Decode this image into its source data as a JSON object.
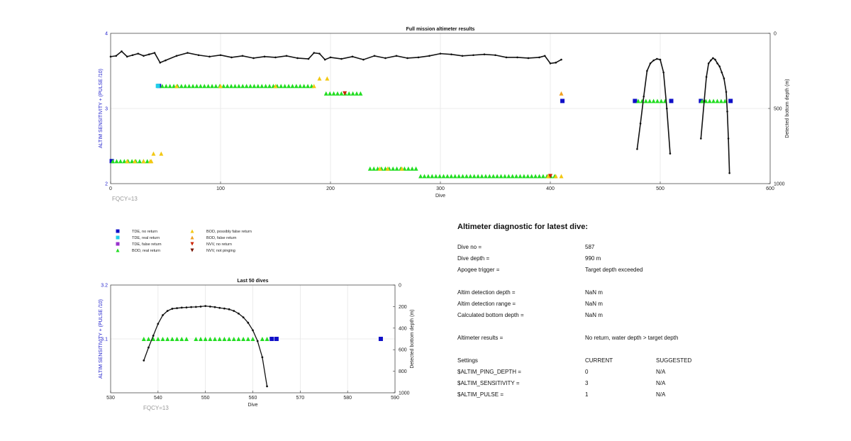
{
  "chart_data": [
    {
      "type": "scatter",
      "title": "Full mission altimeter results",
      "xlabel": "Dive",
      "ylabel": "ALTIM SENSITIVITY + (PULSE /10)",
      "y2label": "Detected bottom depth (m)",
      "xlim": [
        0,
        600
      ],
      "ylim": [
        2,
        4
      ],
      "y2lim": [
        0,
        1000
      ],
      "y2_reversed": true,
      "grid": true,
      "xticks": [
        "0",
        "100",
        "200",
        "300",
        "400",
        "500",
        "600"
      ],
      "yticks": [
        "2",
        "3",
        "4"
      ],
      "y2ticks": [
        "0",
        "500",
        "1000"
      ],
      "note": "FQCY=13",
      "series": [
        {
          "name": "TDE, no return",
          "marker": "square",
          "color": "#1010c8",
          "points": [
            [
              1,
              2.3
            ],
            [
              44,
              3.3
            ],
            [
              411,
              3.1
            ],
            [
              477,
              3.1
            ],
            [
              510,
              3.1
            ],
            [
              537,
              3.1
            ],
            [
              564,
              3.1
            ]
          ]
        },
        {
          "name": "TDE, real return",
          "marker": "square",
          "color": "#20d0e8",
          "points": [
            [
              43,
              3.3
            ]
          ]
        },
        {
          "name": "BOD, real return",
          "marker": "triangle",
          "color": "#22dd22",
          "segments": [
            [
              2,
              36,
              2.3
            ],
            [
              47,
              185,
              3.3
            ],
            [
              196,
              230,
              3.2
            ],
            [
              236,
              280,
              2.2
            ],
            [
              282,
              405,
              2.1
            ],
            [
              480,
              507,
              3.1
            ],
            [
              538,
              562,
              3.1
            ]
          ]
        },
        {
          "name": "BOD, possibly false return",
          "marker": "triangle",
          "color": "#f2c813",
          "points": [
            [
              15,
              2.3
            ],
            [
              22,
              2.3
            ],
            [
              30,
              2.3
            ],
            [
              36,
              2.3
            ],
            [
              37,
              2.3
            ],
            [
              39,
              2.4
            ],
            [
              46,
              2.4
            ],
            [
              60,
              3.3
            ],
            [
              100,
              3.3
            ],
            [
              150,
              3.3
            ],
            [
              185,
              3.3
            ],
            [
              190,
              3.4
            ],
            [
              197,
              3.4
            ],
            [
              245,
              2.2
            ],
            [
              252,
              2.2
            ],
            [
              265,
              2.2
            ],
            [
              398,
              2.1
            ],
            [
              405,
              2.1
            ],
            [
              410,
              2.1
            ]
          ]
        },
        {
          "name": "BOD, false return",
          "marker": "triangle",
          "color": "#f0a020",
          "points": [
            [
              410,
              3.2
            ]
          ]
        },
        {
          "name": "NVV, no return",
          "marker": "triangle-down",
          "color": "#cc2200",
          "points": [
            [
              213,
              3.2
            ],
            [
              400,
              2.1
            ]
          ]
        },
        {
          "name": "Detected bottom depth",
          "axis": "right",
          "marker": "dot-line",
          "color": "#111111",
          "x": [
            0,
            5,
            10,
            15,
            20,
            25,
            30,
            35,
            40,
            45,
            50,
            60,
            70,
            80,
            90,
            100,
            110,
            120,
            130,
            140,
            150,
            160,
            170,
            180,
            185,
            190,
            195,
            200,
            210,
            220,
            230,
            240,
            250,
            260,
            270,
            280,
            290,
            300,
            310,
            320,
            330,
            340,
            350,
            360,
            370,
            380,
            390,
            395,
            400,
            405,
            410
          ],
          "y": [
            155,
            150,
            120,
            155,
            145,
            135,
            150,
            140,
            130,
            195,
            180,
            150,
            130,
            145,
            155,
            145,
            160,
            150,
            165,
            155,
            160,
            150,
            165,
            170,
            130,
            135,
            175,
            160,
            170,
            155,
            175,
            150,
            165,
            150,
            165,
            160,
            150,
            135,
            140,
            150,
            145,
            140,
            145,
            160,
            160,
            165,
            160,
            150,
            200,
            195,
            175
          ]
        },
        {
          "name": "Detected bottom depth (dives 477-508)",
          "axis": "right",
          "marker": "dot-line",
          "color": "#111111",
          "x": [
            479,
            482,
            485,
            488,
            491,
            494,
            497,
            500,
            503,
            506,
            509
          ],
          "y": [
            770,
            600,
            420,
            250,
            200,
            180,
            170,
            175,
            260,
            500,
            800
          ]
        },
        {
          "name": "Detected bottom depth (dives 536-564)",
          "axis": "right",
          "marker": "dot-line",
          "color": "#111111",
          "x": [
            537,
            540,
            542,
            544,
            546,
            548,
            550,
            552,
            554,
            556,
            558,
            560,
            561,
            562,
            563
          ],
          "y": [
            700,
            450,
            290,
            200,
            180,
            165,
            175,
            200,
            220,
            260,
            300,
            390,
            520,
            700,
            930
          ]
        }
      ]
    },
    {
      "type": "scatter",
      "title": "Last 50 dives",
      "xlabel": "Dive",
      "ylabel": "ALTIM SENSITIVITY + (PULSE /10)",
      "y2label": "Detected bottom depth (m)",
      "xlim": [
        530,
        590
      ],
      "ylim": [
        3.0,
        3.2
      ],
      "y2lim": [
        0,
        1000
      ],
      "y2_reversed": true,
      "grid": true,
      "xticks": [
        "530",
        "540",
        "550",
        "560",
        "570",
        "580",
        "590"
      ],
      "yticks": [
        "3.1",
        "3.2"
      ],
      "y2ticks": [
        "0",
        "200",
        "400",
        "600",
        "800",
        "1000"
      ],
      "note": "FQCY=13",
      "series": [
        {
          "name": "BOD, real return",
          "marker": "triangle",
          "color": "#22dd22",
          "points": [
            [
              537,
              3.1
            ],
            [
              538,
              3.1
            ],
            [
              539,
              3.1
            ],
            [
              540,
              3.1
            ],
            [
              541,
              3.1
            ],
            [
              542,
              3.1
            ],
            [
              543,
              3.1
            ],
            [
              544,
              3.1
            ],
            [
              545,
              3.1
            ],
            [
              546,
              3.1
            ],
            [
              548,
              3.1
            ],
            [
              549,
              3.1
            ],
            [
              550,
              3.1
            ],
            [
              551,
              3.1
            ],
            [
              552,
              3.1
            ],
            [
              553,
              3.1
            ],
            [
              554,
              3.1
            ],
            [
              555,
              3.1
            ],
            [
              556,
              3.1
            ],
            [
              557,
              3.1
            ],
            [
              558,
              3.1
            ],
            [
              559,
              3.1
            ],
            [
              560,
              3.1
            ],
            [
              562,
              3.1
            ],
            [
              563,
              3.1
            ]
          ]
        },
        {
          "name": "TDE, no return",
          "marker": "square",
          "color": "#1010c8",
          "points": [
            [
              564,
              3.1
            ],
            [
              565,
              3.1
            ],
            [
              587,
              3.1
            ]
          ]
        },
        {
          "name": "Detected bottom depth",
          "axis": "right",
          "marker": "dot-line",
          "color": "#111111",
          "x": [
            537,
            538,
            539,
            540,
            541,
            542,
            543,
            544,
            545,
            546,
            547,
            548,
            549,
            550,
            551,
            552,
            553,
            554,
            555,
            556,
            557,
            558,
            559,
            560,
            561,
            562,
            563
          ],
          "y": [
            700,
            580,
            470,
            360,
            280,
            240,
            220,
            215,
            210,
            208,
            205,
            203,
            200,
            195,
            200,
            205,
            212,
            218,
            225,
            240,
            265,
            300,
            350,
            420,
            520,
            670,
            940
          ]
        }
      ]
    }
  ],
  "legend": {
    "items": [
      {
        "label": "TDE, no return",
        "marker": "square",
        "color": "#1010c8"
      },
      {
        "label": "TDE, real return",
        "marker": "square",
        "color": "#20d0e8"
      },
      {
        "label": "TDE, false return",
        "marker": "square",
        "color": "#9933cc"
      },
      {
        "label": "BOD, real return",
        "marker": "triangle",
        "color": "#22dd22"
      },
      {
        "label": "BOD, possibly false return",
        "marker": "triangle",
        "color": "#f2c813"
      },
      {
        "label": "BOD, false return",
        "marker": "triangle",
        "color": "#f0a020"
      },
      {
        "label": "NVV, no return",
        "marker": "triangle-down",
        "color": "#cc2200"
      },
      {
        "label": "NVV, not pinging",
        "marker": "triangle-down",
        "color": "#771100"
      }
    ]
  },
  "diagnostic": {
    "title": "Altimeter diagnostic for latest dive:",
    "rows": [
      {
        "label": "Dive no =",
        "value": "587"
      },
      {
        "label": "Dive depth =",
        "value": "990 m"
      },
      {
        "label": "Apogee trigger =",
        "value": "Target depth exceeded"
      },
      {
        "label": "",
        "value": ""
      },
      {
        "label": "Altim detection depth =",
        "value": "NaN m"
      },
      {
        "label": "Altim detection range =",
        "value": "NaN m"
      },
      {
        "label": "Calculated bottom depth =",
        "value": "NaN m"
      },
      {
        "label": "",
        "value": ""
      },
      {
        "label": "Altimeter results =",
        "value": "No return, water depth > target depth"
      },
      {
        "label": "",
        "value": ""
      },
      {
        "label": "Settings",
        "value": "CURRENT",
        "extra": "SUGGESTED"
      },
      {
        "label": "$ALTIM_PING_DEPTH =",
        "value": "0",
        "extra": "N/A"
      },
      {
        "label": "$ALTIM_SENSITIVITY =",
        "value": "3",
        "extra": "N/A"
      },
      {
        "label": "$ALTIM_PULSE =",
        "value": "1",
        "extra": "N/A"
      }
    ]
  }
}
